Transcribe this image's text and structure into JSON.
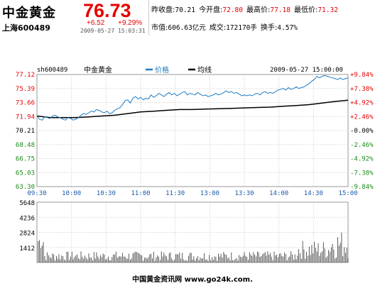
{
  "header": {
    "name": "中金黄金",
    "code": "上海600489",
    "price": "76.73",
    "change": "+6.52",
    "change_pct": "+9.29%",
    "timestamp": "2009-05-27 15:03:31",
    "stats_row1": [
      {
        "label": "昨收盘:",
        "value": "70.21",
        "color": "#000000"
      },
      {
        "label": "今开盘:",
        "value": "72.80",
        "color": "#e60000"
      },
      {
        "label": "最高价:",
        "value": "77.18",
        "color": "#e60000"
      },
      {
        "label": "最低价:",
        "value": "71.32",
        "color": "#e60000"
      }
    ],
    "stats_row2": [
      {
        "label": "市值:",
        "value": "606.63亿元",
        "color": "#000000"
      },
      {
        "label": "成交:",
        "value": "172170手",
        "color": "#000000"
      },
      {
        "label": "换手:",
        "value": "4.57%",
        "color": "#000000"
      }
    ]
  },
  "chart_data": {
    "type": "line",
    "code_label": "sh600489",
    "name_label": "中金黄金",
    "datetime_label": "2009-05-27 15:00:00",
    "legend": [
      {
        "name": "价格",
        "color": "#1f7cc2"
      },
      {
        "name": "均线",
        "color": "#000000"
      }
    ],
    "prev_close": 70.21,
    "ylim": [
      63.3,
      77.12
    ],
    "y_ticks_left": [
      "77.12",
      "75.39",
      "73.66",
      "71.94",
      "70.21",
      "68.48",
      "66.75",
      "65.03",
      "63.30"
    ],
    "y_ticks_right": [
      "+9.84%",
      "+7.38%",
      "+4.92%",
      "+2.46%",
      "-0.00%",
      "-2.46%",
      "-4.92%",
      "-7.38%",
      "-9.84%"
    ],
    "x_ticks": [
      "09:30",
      "10:00",
      "10:30",
      "11:00",
      "11:30",
      "13:00",
      "13:30",
      "14:00",
      "14:30",
      "15:00"
    ],
    "price_series": [
      [
        0,
        72.0
      ],
      [
        2,
        71.6
      ],
      [
        4,
        71.5
      ],
      [
        6,
        71.9
      ],
      [
        8,
        71.8
      ],
      [
        10,
        71.7
      ],
      [
        12,
        72.0
      ],
      [
        14,
        72.1
      ],
      [
        16,
        71.9
      ],
      [
        18,
        71.8
      ],
      [
        20,
        71.6
      ],
      [
        22,
        71.5
      ],
      [
        24,
        71.8
      ],
      [
        26,
        71.7
      ],
      [
        28,
        71.5
      ],
      [
        30,
        71.6
      ],
      [
        32,
        71.8
      ],
      [
        34,
        72.1
      ],
      [
        36,
        72.3
      ],
      [
        38,
        72.2
      ],
      [
        40,
        72.4
      ],
      [
        42,
        72.6
      ],
      [
        44,
        72.5
      ],
      [
        46,
        72.8
      ],
      [
        48,
        72.7
      ],
      [
        50,
        72.5
      ],
      [
        52,
        72.4
      ],
      [
        54,
        72.6
      ],
      [
        56,
        72.3
      ],
      [
        58,
        72.4
      ],
      [
        60,
        72.7
      ],
      [
        62,
        72.9
      ],
      [
        64,
        73.0
      ],
      [
        66,
        73.4
      ],
      [
        68,
        73.9
      ],
      [
        70,
        74.0
      ],
      [
        72,
        73.6
      ],
      [
        74,
        74.2
      ],
      [
        76,
        74.4
      ],
      [
        78,
        74.1
      ],
      [
        80,
        74.3
      ],
      [
        82,
        74.0
      ],
      [
        84,
        74.2
      ],
      [
        86,
        74.1
      ],
      [
        88,
        74.6
      ],
      [
        90,
        74.3
      ],
      [
        92,
        74.5
      ],
      [
        94,
        74.8
      ],
      [
        96,
        74.6
      ],
      [
        98,
        74.4
      ],
      [
        100,
        74.7
      ],
      [
        102,
        74.9
      ],
      [
        104,
        74.6
      ],
      [
        106,
        74.8
      ],
      [
        108,
        74.5
      ],
      [
        110,
        74.7
      ],
      [
        112,
        74.9
      ],
      [
        114,
        75.0
      ],
      [
        116,
        74.6
      ],
      [
        118,
        74.8
      ],
      [
        120,
        74.7
      ],
      [
        122,
        74.6
      ],
      [
        124,
        74.9
      ],
      [
        126,
        74.7
      ],
      [
        128,
        74.5
      ],
      [
        130,
        74.6
      ],
      [
        132,
        74.4
      ],
      [
        134,
        74.5
      ],
      [
        136,
        74.6
      ],
      [
        138,
        74.8
      ],
      [
        140,
        74.6
      ],
      [
        142,
        74.7
      ],
      [
        144,
        74.9
      ],
      [
        146,
        75.1
      ],
      [
        148,
        74.9
      ],
      [
        150,
        75.0
      ],
      [
        152,
        74.8
      ],
      [
        154,
        74.9
      ],
      [
        156,
        74.7
      ],
      [
        158,
        74.5
      ],
      [
        160,
        74.6
      ],
      [
        162,
        74.5
      ],
      [
        164,
        74.6
      ],
      [
        166,
        74.5
      ],
      [
        168,
        74.7
      ],
      [
        170,
        74.8
      ],
      [
        172,
        74.6
      ],
      [
        174,
        74.9
      ],
      [
        176,
        75.0
      ],
      [
        178,
        74.8
      ],
      [
        180,
        74.9
      ],
      [
        182,
        74.8
      ],
      [
        184,
        75.0
      ],
      [
        186,
        75.2
      ],
      [
        188,
        75.3
      ],
      [
        190,
        75.4
      ],
      [
        192,
        75.2
      ],
      [
        194,
        75.5
      ],
      [
        196,
        75.3
      ],
      [
        198,
        75.4
      ],
      [
        200,
        75.6
      ],
      [
        202,
        75.4
      ],
      [
        204,
        75.5
      ],
      [
        206,
        75.6
      ],
      [
        208,
        75.8
      ],
      [
        210,
        76.0
      ],
      [
        212,
        76.3
      ],
      [
        214,
        76.5
      ],
      [
        216,
        76.9
      ],
      [
        218,
        76.7
      ],
      [
        220,
        76.9
      ],
      [
        222,
        77.0
      ],
      [
        224,
        76.9
      ],
      [
        226,
        76.8
      ],
      [
        228,
        76.7
      ],
      [
        230,
        76.6
      ],
      [
        232,
        76.5
      ],
      [
        234,
        76.7
      ],
      [
        236,
        76.5
      ],
      [
        238,
        76.6
      ],
      [
        240,
        76.73
      ]
    ],
    "avg_series": [
      [
        0,
        72.0
      ],
      [
        10,
        71.8
      ],
      [
        20,
        71.8
      ],
      [
        30,
        71.8
      ],
      [
        40,
        71.9
      ],
      [
        50,
        72.0
      ],
      [
        60,
        72.1
      ],
      [
        70,
        72.3
      ],
      [
        80,
        72.5
      ],
      [
        90,
        72.6
      ],
      [
        100,
        72.7
      ],
      [
        110,
        72.8
      ],
      [
        120,
        72.8
      ],
      [
        130,
        72.85
      ],
      [
        140,
        72.9
      ],
      [
        150,
        72.95
      ],
      [
        160,
        73.0
      ],
      [
        170,
        73.05
      ],
      [
        180,
        73.1
      ],
      [
        190,
        73.2
      ],
      [
        200,
        73.3
      ],
      [
        210,
        73.4
      ],
      [
        220,
        73.6
      ],
      [
        230,
        73.8
      ],
      [
        240,
        73.95
      ]
    ],
    "volume_ylim": [
      0,
      5648
    ],
    "volume_ticks": [
      "5648",
      "4236",
      "2824",
      "1412"
    ]
  },
  "footer": {
    "text": "中国黄金资讯网 www.go24k.com."
  }
}
